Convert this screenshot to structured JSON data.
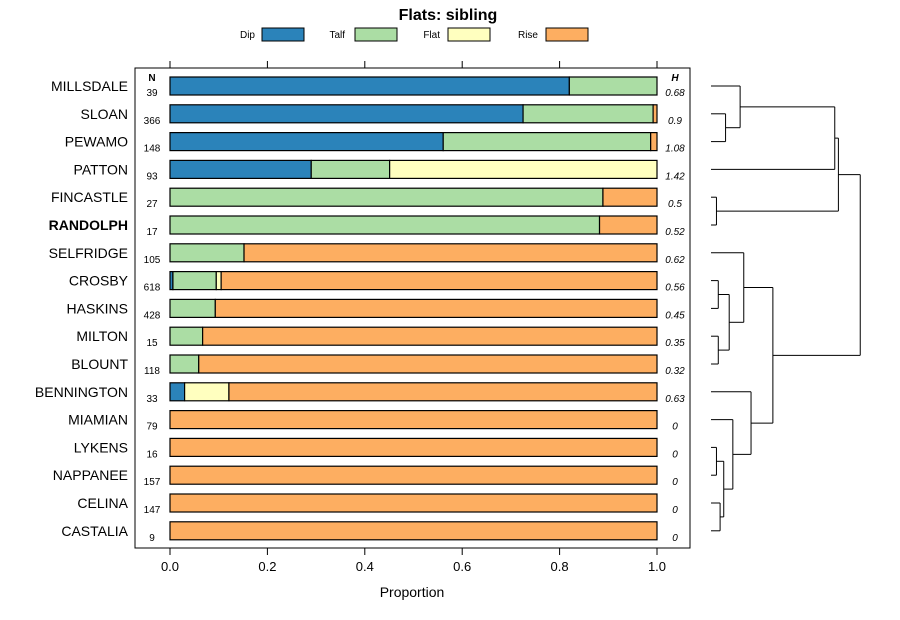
{
  "chart_data": {
    "type": "bar",
    "stacked": true,
    "orientation": "horizontal",
    "title": "Flats: sibling",
    "xlabel": "Proportion",
    "xlim": [
      0,
      1
    ],
    "xticks": [
      "0.0",
      "0.2",
      "0.4",
      "0.6",
      "0.8",
      "1.0"
    ],
    "n_header": "N",
    "h_header": "H",
    "legend": [
      {
        "name": "Dip",
        "color": "#2b83ba"
      },
      {
        "name": "Talf",
        "color": "#abdda4"
      },
      {
        "name": "Flat",
        "color": "#ffffbf"
      },
      {
        "name": "Rise",
        "color": "#fdae61"
      }
    ],
    "rows": [
      {
        "label": "MILLSDALE",
        "n": "39",
        "h": "0.68",
        "bold": false,
        "values": [
          0.82,
          0.18,
          0,
          0
        ]
      },
      {
        "label": "SLOAN",
        "n": "366",
        "h": "0.9",
        "bold": false,
        "values": [
          0.725,
          0.267,
          0,
          0.008
        ]
      },
      {
        "label": "PEWAMO",
        "n": "148",
        "h": "1.08",
        "bold": false,
        "values": [
          0.561,
          0.426,
          0,
          0.013
        ]
      },
      {
        "label": "PATTON",
        "n": "93",
        "h": "1.42",
        "bold": false,
        "values": [
          0.29,
          0.161,
          0.549,
          0
        ]
      },
      {
        "label": "FINCASTLE",
        "n": "27",
        "h": "0.5",
        "bold": false,
        "values": [
          0,
          0.889,
          0,
          0.111
        ]
      },
      {
        "label": "RANDOLPH",
        "n": "17",
        "h": "0.52",
        "bold": true,
        "values": [
          0,
          0.882,
          0,
          0.118
        ]
      },
      {
        "label": "SELFRIDGE",
        "n": "105",
        "h": "0.62",
        "bold": false,
        "values": [
          0,
          0.152,
          0,
          0.848
        ]
      },
      {
        "label": "CROSBY",
        "n": "618",
        "h": "0.56",
        "bold": false,
        "values": [
          0.006,
          0.089,
          0.01,
          0.895
        ]
      },
      {
        "label": "HASKINS",
        "n": "428",
        "h": "0.45",
        "bold": false,
        "values": [
          0,
          0.093,
          0,
          0.907
        ]
      },
      {
        "label": "MILTON",
        "n": "15",
        "h": "0.35",
        "bold": false,
        "values": [
          0,
          0.067,
          0,
          0.933
        ]
      },
      {
        "label": "BLOUNT",
        "n": "118",
        "h": "0.32",
        "bold": false,
        "values": [
          0,
          0.059,
          0,
          0.941
        ]
      },
      {
        "label": "BENNINGTON",
        "n": "33",
        "h": "0.63",
        "bold": false,
        "values": [
          0.03,
          0,
          0.091,
          0.879
        ]
      },
      {
        "label": "MIAMIAN",
        "n": "79",
        "h": "0",
        "bold": false,
        "values": [
          0,
          0,
          0,
          1
        ]
      },
      {
        "label": "LYKENS",
        "n": "16",
        "h": "0",
        "bold": false,
        "values": [
          0,
          0,
          0,
          1
        ]
      },
      {
        "label": "NAPPANEE",
        "n": "157",
        "h": "0",
        "bold": false,
        "values": [
          0,
          0,
          0,
          1
        ]
      },
      {
        "label": "CELINA",
        "n": "147",
        "h": "0",
        "bold": false,
        "values": [
          0,
          0,
          0,
          1
        ]
      },
      {
        "label": "CASTALIA",
        "n": "9",
        "h": "0",
        "bold": false,
        "values": [
          0,
          0,
          0,
          1
        ]
      }
    ],
    "dendrogram": {
      "leaves": 17,
      "max_height": 1,
      "merges": [
        {
          "a": 1,
          "b": 2,
          "h": 0.08
        },
        {
          "a": 0,
          "b": "m0",
          "h": 0.16
        },
        {
          "a": 7,
          "b": 8,
          "h": 0.04
        },
        {
          "a": 9,
          "b": 10,
          "h": 0.04
        },
        {
          "a": 4,
          "b": 5,
          "h": 0.03
        },
        {
          "a": 13,
          "b": 14,
          "h": 0.03
        },
        {
          "a": 15,
          "b": 16,
          "h": 0.05
        },
        {
          "a": "m2",
          "b": "m3",
          "h": 0.1
        },
        {
          "a": "m5",
          "b": "m6",
          "h": 0.07
        },
        {
          "a": 12,
          "b": "m8",
          "h": 0.12
        },
        {
          "a": 6,
          "b": "m7",
          "h": 0.18
        },
        {
          "a": 11,
          "b": "m9",
          "h": 0.22
        },
        {
          "a": "m10",
          "b": "m11",
          "h": 0.34
        },
        {
          "a": "m1",
          "b": 3,
          "h": 0.68
        },
        {
          "a": "m13",
          "b": "m4",
          "h": 0.7
        },
        {
          "a": "m14",
          "b": "m12",
          "h": 0.82
        }
      ]
    }
  }
}
